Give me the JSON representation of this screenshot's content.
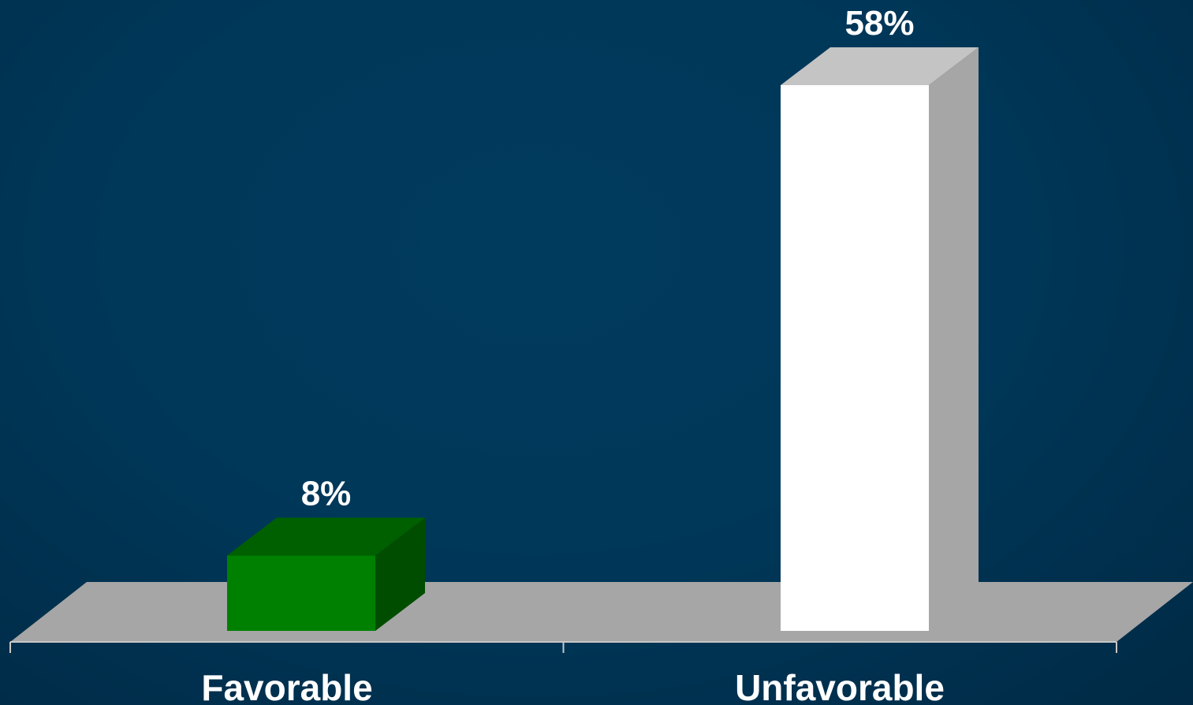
{
  "chart_data": {
    "type": "bar",
    "style": "3d",
    "categories": [
      "Favorable",
      "Unfavorable"
    ],
    "values": [
      8,
      58
    ],
    "data_labels": [
      "8%",
      "58%"
    ],
    "unit": "%",
    "ylim": [
      0,
      58
    ],
    "grid": false,
    "legend": "none",
    "colors": {
      "Favorable": {
        "front": "#008000",
        "top": "#006000",
        "side": "#004d00"
      },
      "Unfavorable": {
        "front": "#ffffff",
        "top": "#c4c4c4",
        "side": "#a6a6a6"
      },
      "floor": "#a6a6a6",
      "axis": "#c8c8c8",
      "text": "#ffffff"
    }
  }
}
